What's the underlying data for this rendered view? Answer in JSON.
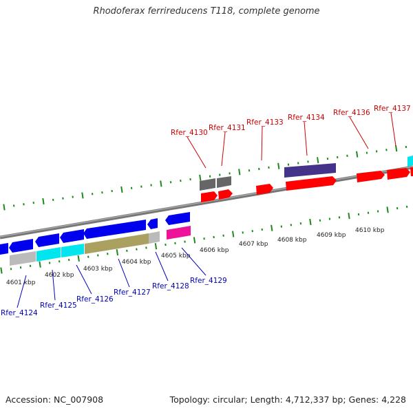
{
  "title": "Rhodoferax ferrireducens T118, complete genome",
  "footer": {
    "accession": "Accession: NC_007908",
    "summary": "Topology: circular; Length: 4,712,337 bp; Genes: 4,228"
  },
  "colors": {
    "backbone": "#888888",
    "tick": "#1a8a1a",
    "forward_label": "#cc0000",
    "reverse_label": "#0000bb",
    "label_leader_forward": "#cc0000",
    "label_leader_reverse": "#0000bb"
  },
  "scale_labels": [
    "4601 kbp",
    "4602 kbp",
    "4603 kbp",
    "4604 kbp",
    "4605 kbp",
    "4606 kbp",
    "4607 kbp",
    "4608 kbp",
    "4609 kbp",
    "4610 kbp"
  ],
  "forward_genes": [
    {
      "name": "Rfer_4130",
      "color": "#666666",
      "strand": "+"
    },
    {
      "name": "Rfer_4131",
      "color": "#666666",
      "strand": "+"
    },
    {
      "name": "Rfer_4133",
      "color": "#ff0000",
      "strand": "+"
    },
    {
      "name": "Rfer_4134",
      "color": "#443388",
      "strand": "+"
    },
    {
      "name": "Rfer_4136",
      "color": "#ff0000",
      "strand": "+"
    },
    {
      "name": "Rfer_4137",
      "color": "#ff0000",
      "strand": "+"
    }
  ],
  "reverse_genes": [
    {
      "name": "Rfer_4124",
      "color": "#0000ee",
      "strand": "-"
    },
    {
      "name": "Rfer_4125",
      "color": "#00e5ee",
      "strand": "-"
    },
    {
      "name": "Rfer_4126",
      "color": "#00e5ee",
      "strand": "-"
    },
    {
      "name": "Rfer_4127",
      "color": "#aaa060",
      "strand": "-"
    },
    {
      "name": "Rfer_4128",
      "color": "#0000ee",
      "strand": "-"
    },
    {
      "name": "Rfer_4129",
      "color": "#ee1199",
      "strand": "-"
    }
  ]
}
